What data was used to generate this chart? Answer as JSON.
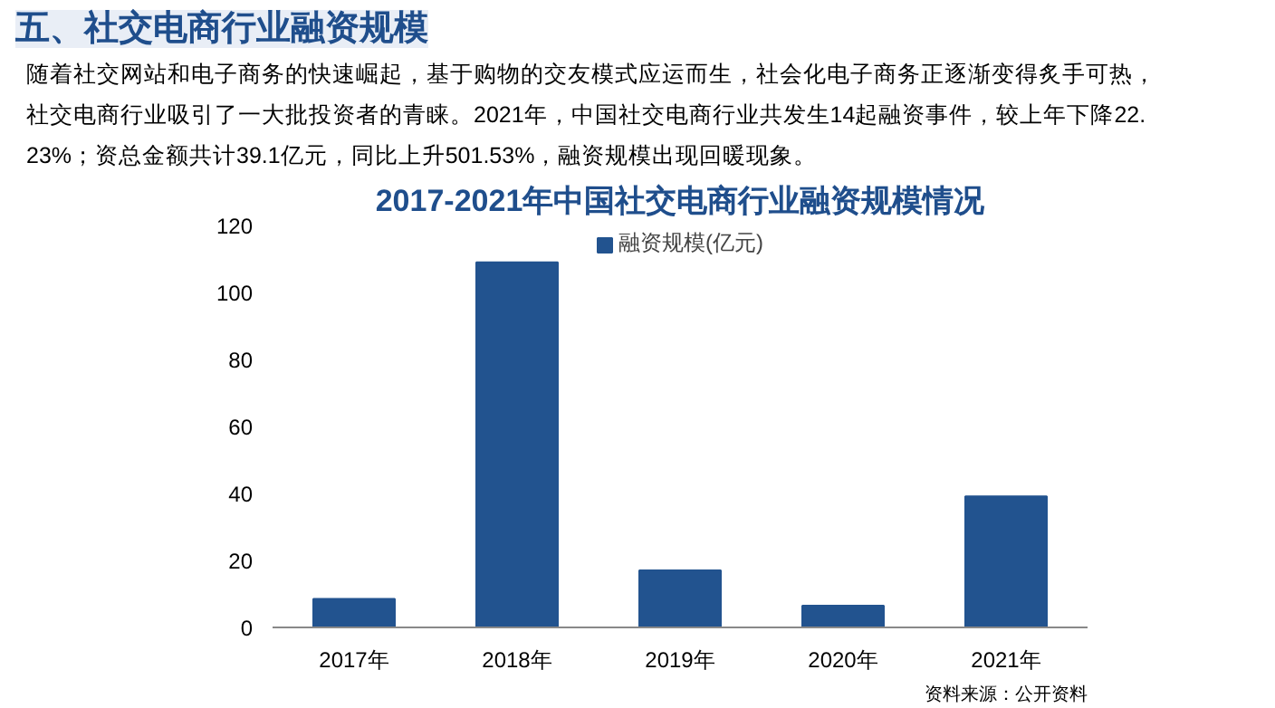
{
  "chart_data": {
    "type": "bar",
    "title": "2017-2021年中国社交电商行业融资规模情况",
    "categories": [
      "2017年",
      "2018年",
      "2019年",
      "2020年",
      "2021年"
    ],
    "series": [
      {
        "name": "融资规模(亿元)",
        "color": "#22538f",
        "values": [
          8.5,
          109,
          17,
          6.5,
          39.1
        ]
      }
    ],
    "ylim": [
      0,
      120
    ],
    "yticks": [
      0,
      20,
      40,
      60,
      80,
      100,
      120
    ],
    "grid": false,
    "legend": "top",
    "annotations": [
      "五、社交电商行业融资规模",
      "随着社交网站和电子商务的快速崛起，基于购物的交友模式应运而生，社会化电子商务正逐渐变得炙手可热，社交电商行业吸引了一大批投资者的青睐。2021年，中国社交电商行业共发生14起融资事件，较上年下降22.23%；资总金额共计39.1亿元，同比上升501.53%，融资规模出现回暖现象。",
      "资料来源：公开资料"
    ]
  }
}
